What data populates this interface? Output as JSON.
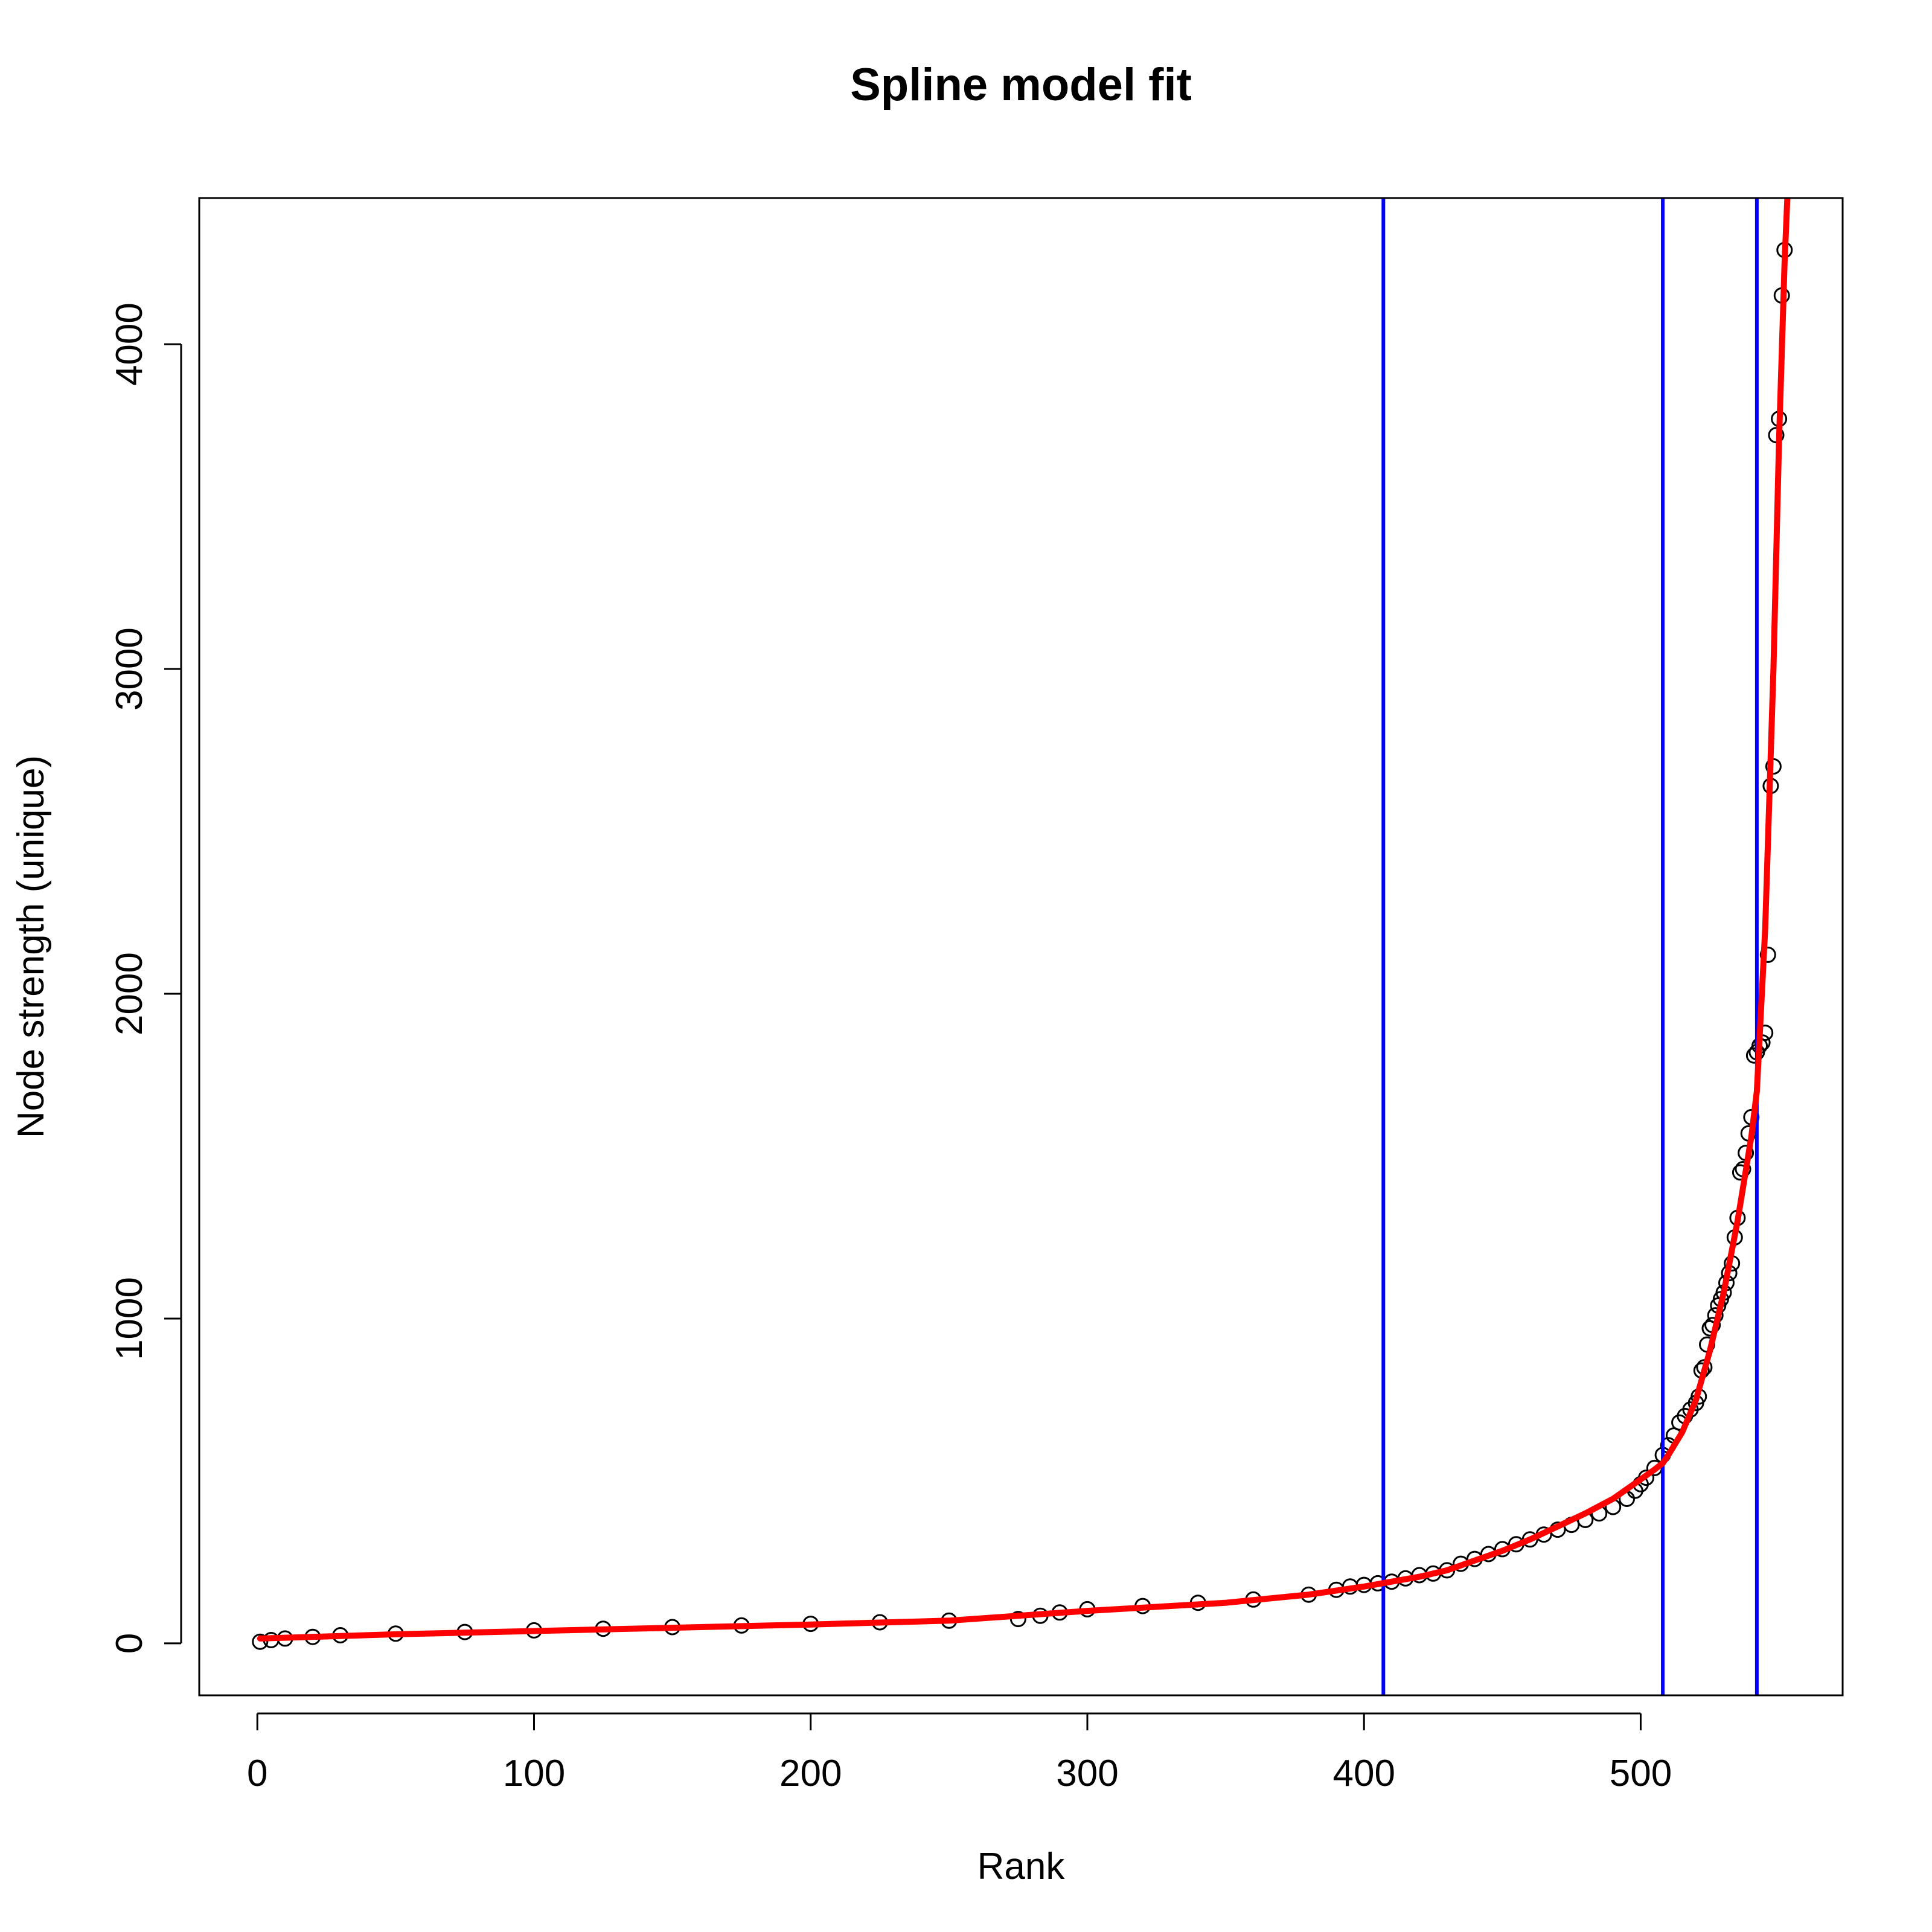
{
  "chart_data": {
    "type": "scatter",
    "title": "Spline model fit",
    "xlabel": "Rank",
    "ylabel": "Node strength (unique)",
    "xlim": [
      -21,
      573
    ],
    "ylim": [
      -160,
      4450
    ],
    "xticks": [
      0,
      100,
      200,
      300,
      400,
      500
    ],
    "yticks": [
      0,
      1000,
      2000,
      3000,
      4000
    ],
    "grid": false,
    "legend": "none",
    "colors": {
      "points": "#000000",
      "fit": "#ff0000",
      "vlines": "#0000ff"
    },
    "vlines": [
      407,
      508,
      542
    ],
    "points": {
      "marker": "open-circle",
      "x": [
        1,
        5,
        10,
        20,
        30,
        50,
        75,
        100,
        125,
        150,
        175,
        200,
        225,
        250,
        275,
        283,
        290,
        300,
        320,
        340,
        360,
        380,
        390,
        395,
        400,
        405,
        410,
        415,
        420,
        425,
        430,
        435,
        440,
        445,
        450,
        455,
        460,
        465,
        470,
        475,
        480,
        485,
        490,
        495,
        498,
        500,
        502,
        505,
        508,
        510,
        512,
        514,
        516,
        518,
        520,
        521,
        522,
        523,
        524,
        525,
        526,
        527,
        528,
        529,
        530,
        531,
        532,
        533,
        534,
        535,
        536,
        537,
        538,
        539,
        540,
        541,
        542,
        543,
        544,
        545,
        546,
        547,
        548,
        549,
        550,
        551,
        552
      ],
      "y": [
        5,
        10,
        15,
        20,
        25,
        30,
        35,
        40,
        45,
        50,
        55,
        60,
        65,
        70,
        75,
        85,
        95,
        105,
        115,
        125,
        135,
        150,
        165,
        175,
        180,
        185,
        190,
        200,
        210,
        215,
        225,
        245,
        260,
        275,
        290,
        305,
        320,
        335,
        350,
        365,
        380,
        400,
        420,
        445,
        470,
        490,
        510,
        540,
        580,
        610,
        640,
        680,
        700,
        720,
        740,
        760,
        840,
        850,
        920,
        970,
        980,
        1010,
        1040,
        1060,
        1080,
        1110,
        1140,
        1170,
        1250,
        1310,
        1450,
        1460,
        1510,
        1570,
        1620,
        1810,
        1820,
        1840,
        1850,
        1880,
        2120,
        2640,
        2700,
        3720,
        3770,
        4150,
        4290
      ]
    },
    "fit": {
      "x": [
        1,
        50,
        100,
        150,
        200,
        250,
        300,
        350,
        380,
        400,
        410,
        420,
        430,
        440,
        450,
        460,
        470,
        480,
        490,
        500,
        505,
        508,
        510,
        515,
        520,
        525,
        530,
        535,
        540,
        542,
        545,
        548,
        550,
        552,
        553
      ],
      "y": [
        15,
        28,
        38,
        48,
        58,
        70,
        100,
        125,
        150,
        175,
        190,
        205,
        225,
        255,
        285,
        320,
        360,
        400,
        445,
        505,
        535,
        555,
        580,
        650,
        750,
        900,
        1080,
        1300,
        1560,
        1700,
        2200,
        3000,
        3700,
        4250,
        4450
      ]
    }
  }
}
